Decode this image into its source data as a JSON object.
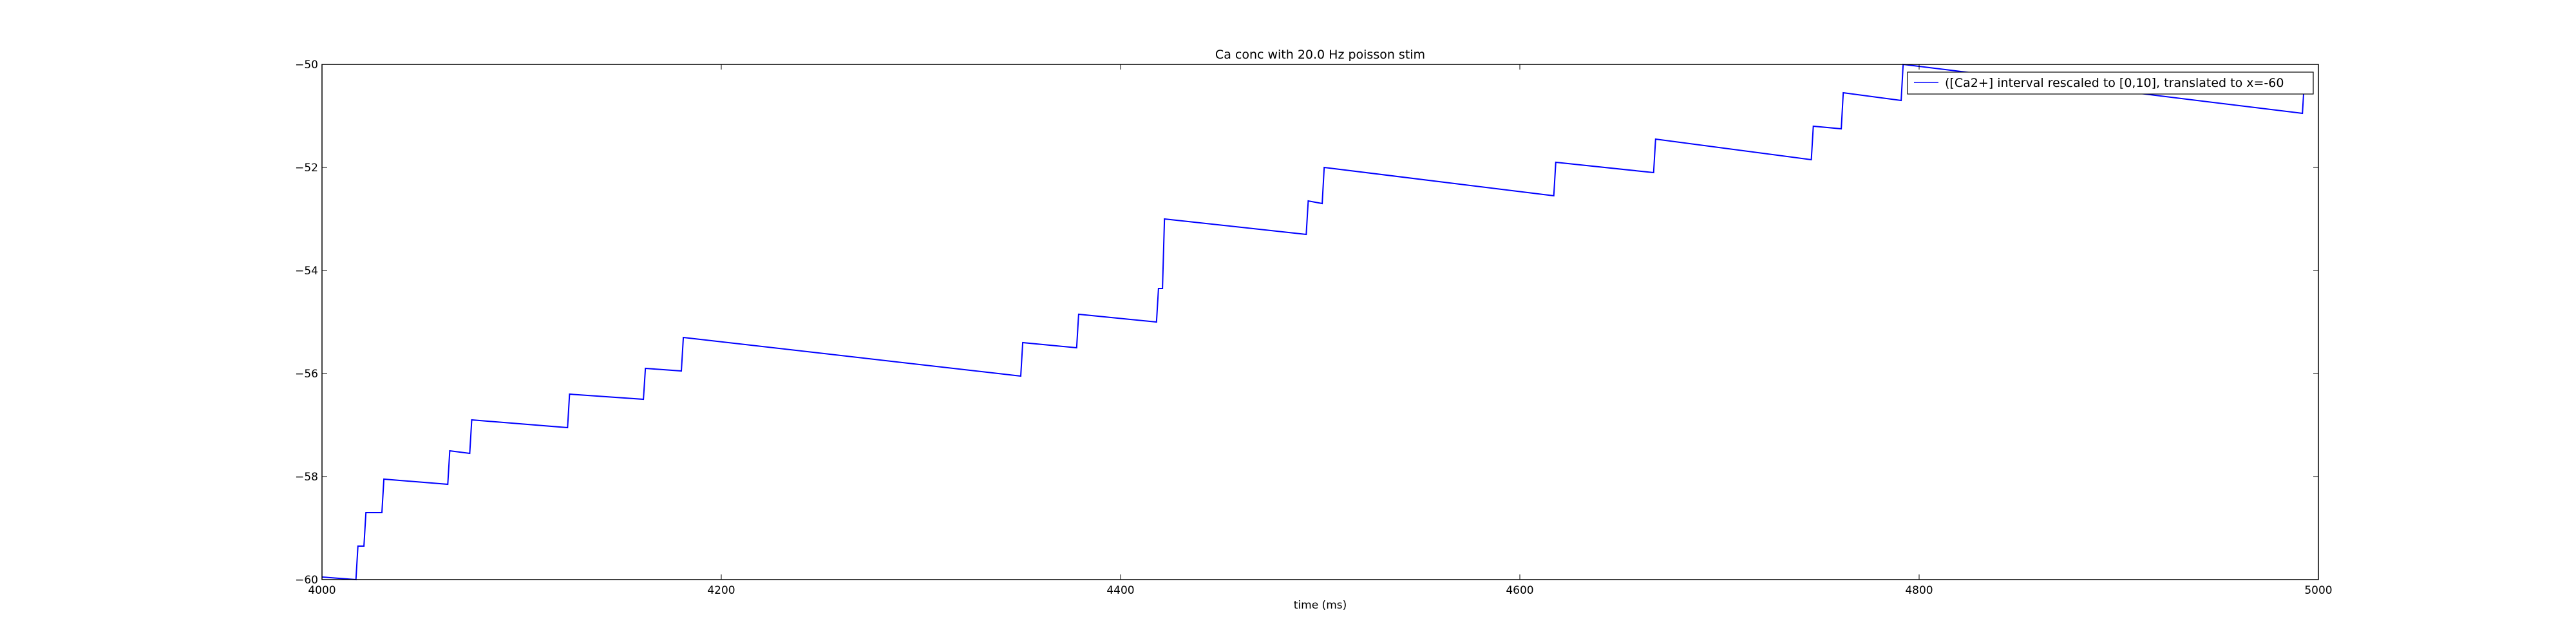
{
  "chart_data": {
    "type": "line",
    "title": "Ca conc with 20.0 Hz poisson stim",
    "xlabel": "time (ms)",
    "ylabel": "",
    "xlim": [
      4000,
      5000
    ],
    "ylim": [
      -60,
      -50
    ],
    "xticks": [
      4000,
      4200,
      4400,
      4600,
      4800,
      5000
    ],
    "yticks": [
      -60,
      -58,
      -56,
      -54,
      -52,
      -50
    ],
    "xtick_labels": [
      "4000",
      "4200",
      "4400",
      "4600",
      "4800",
      "5000"
    ],
    "ytick_labels": [
      "−60",
      "−58",
      "−56",
      "−54",
      "−52",
      "−50"
    ],
    "legend_position": "top-right",
    "grid": false,
    "series": [
      {
        "name": "([Ca2+] interval rescaled to [0,10], translated to x=-60",
        "color": "#0000ff",
        "x": [
          4000,
          4017,
          4018,
          4021,
          4022,
          4030,
          4031,
          4063,
          4064,
          4074,
          4075,
          4123,
          4124,
          4161,
          4162,
          4180,
          4181,
          4350,
          4351,
          4378,
          4379,
          4418,
          4419,
          4421,
          4422,
          4493,
          4494,
          4501,
          4502,
          4617,
          4618,
          4667,
          4668,
          4746,
          4747,
          4761,
          4762,
          4791,
          4792,
          4992,
          4993
        ],
        "y": [
          -59.95,
          -60.0,
          -59.35,
          -59.35,
          -58.7,
          -58.7,
          -58.05,
          -58.15,
          -57.5,
          -57.55,
          -56.9,
          -57.05,
          -56.4,
          -56.5,
          -55.9,
          -55.95,
          -55.3,
          -56.05,
          -55.4,
          -55.5,
          -54.85,
          -55.0,
          -54.35,
          -54.35,
          -53.0,
          -53.3,
          -52.65,
          -52.7,
          -52.0,
          -52.55,
          -51.9,
          -52.1,
          -51.45,
          -51.85,
          -51.2,
          -51.25,
          -50.55,
          -50.7,
          -50.0,
          -50.95,
          -50.3
        ]
      }
    ]
  }
}
